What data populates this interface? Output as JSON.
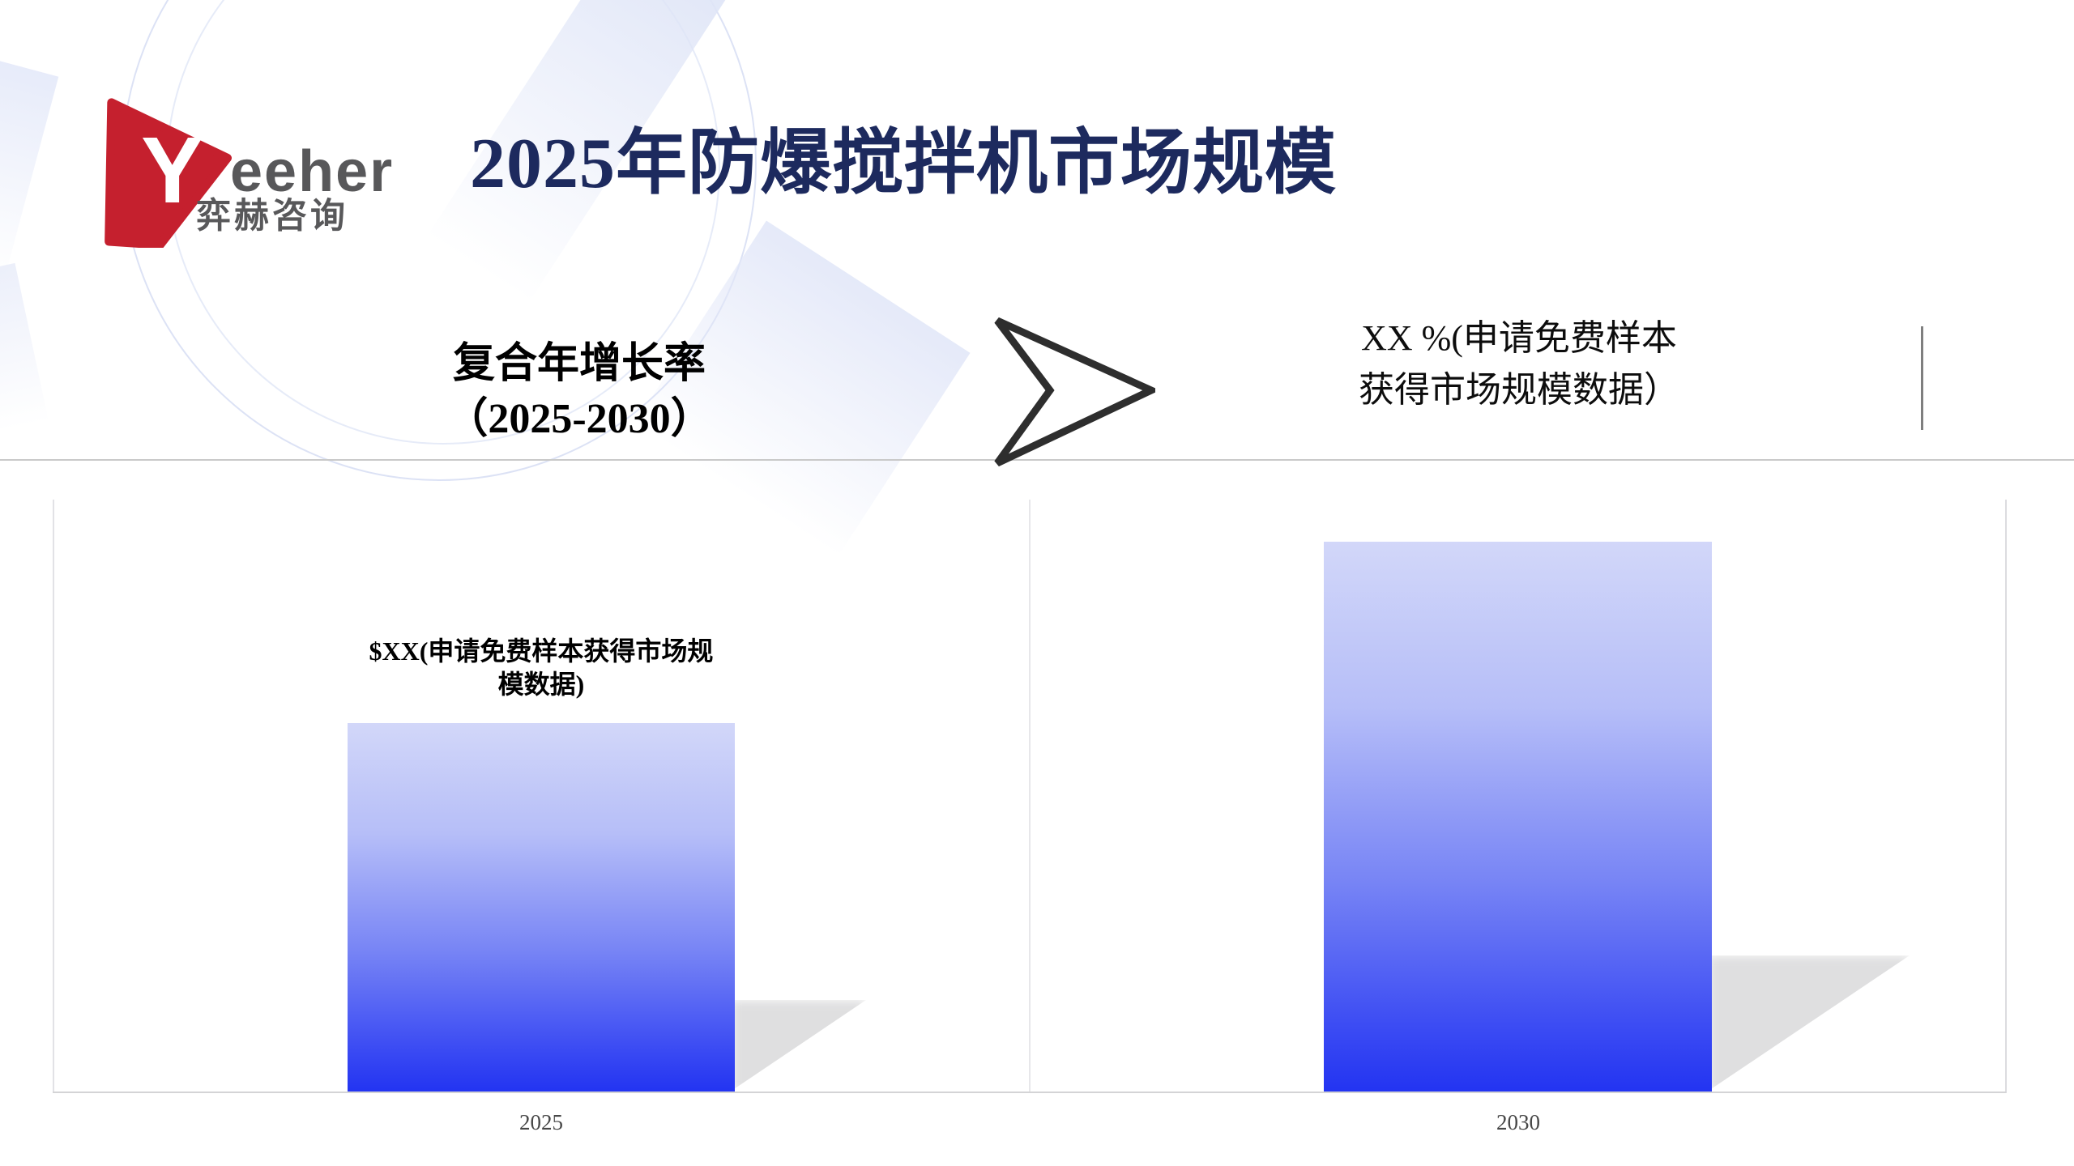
{
  "logo": {
    "brand_y": "Y",
    "brand_rest": "eeher",
    "subtitle": "弈赫咨询"
  },
  "header": {
    "title": "2025年防爆搅拌机市场规模"
  },
  "callouts": {
    "cagr": "复合年增长率\n（2025-2030）",
    "growth": "XX %(申请免费样本\n获得市场规模数据）"
  },
  "chart_data": {
    "type": "bar",
    "categories": [
      "2025",
      "2030"
    ],
    "series": [
      {
        "name": "",
        "values": [
          456,
          680
        ]
      }
    ],
    "values_unit": "relative bar height in px (actual values are placeholders)",
    "bar_label_2025": "$XX(申请免费样本获得市场规\n模数据)",
    "bar_label_2030": "",
    "baseline_y": 1349,
    "ylim": [
      0,
      732
    ],
    "grid": false,
    "legend": "none"
  },
  "colors": {
    "title_navy": "#1d2a5e",
    "logo_red": "#c5202e",
    "logo_gray": "#58585a",
    "bar_gradient_top": "#d2d7f9",
    "bar_gradient_bottom": "#2334f2",
    "divider_gray": "#c9c9c9",
    "tick_gray": "#474747",
    "arrow_stroke": "#2e2e2e"
  }
}
